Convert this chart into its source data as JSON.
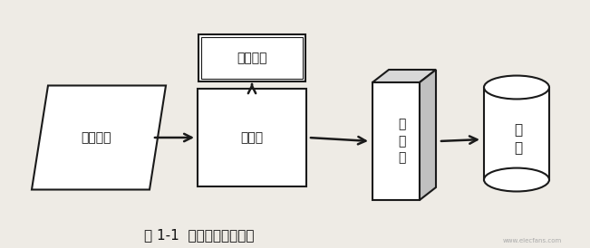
{
  "bg_color": "#eeebe5",
  "title": "图 1-1  光伏发电系统组成",
  "title_fontsize": 11,
  "pv_label": "光伏组件",
  "ctrl_label": "控制器",
  "inv_label": "逆\n变\n器",
  "bat_label": "蓄电池组",
  "load_label": "负\n载",
  "line_color": "#1a1a1a",
  "font_color": "#111111",
  "watermark": "www.elecfans.com"
}
